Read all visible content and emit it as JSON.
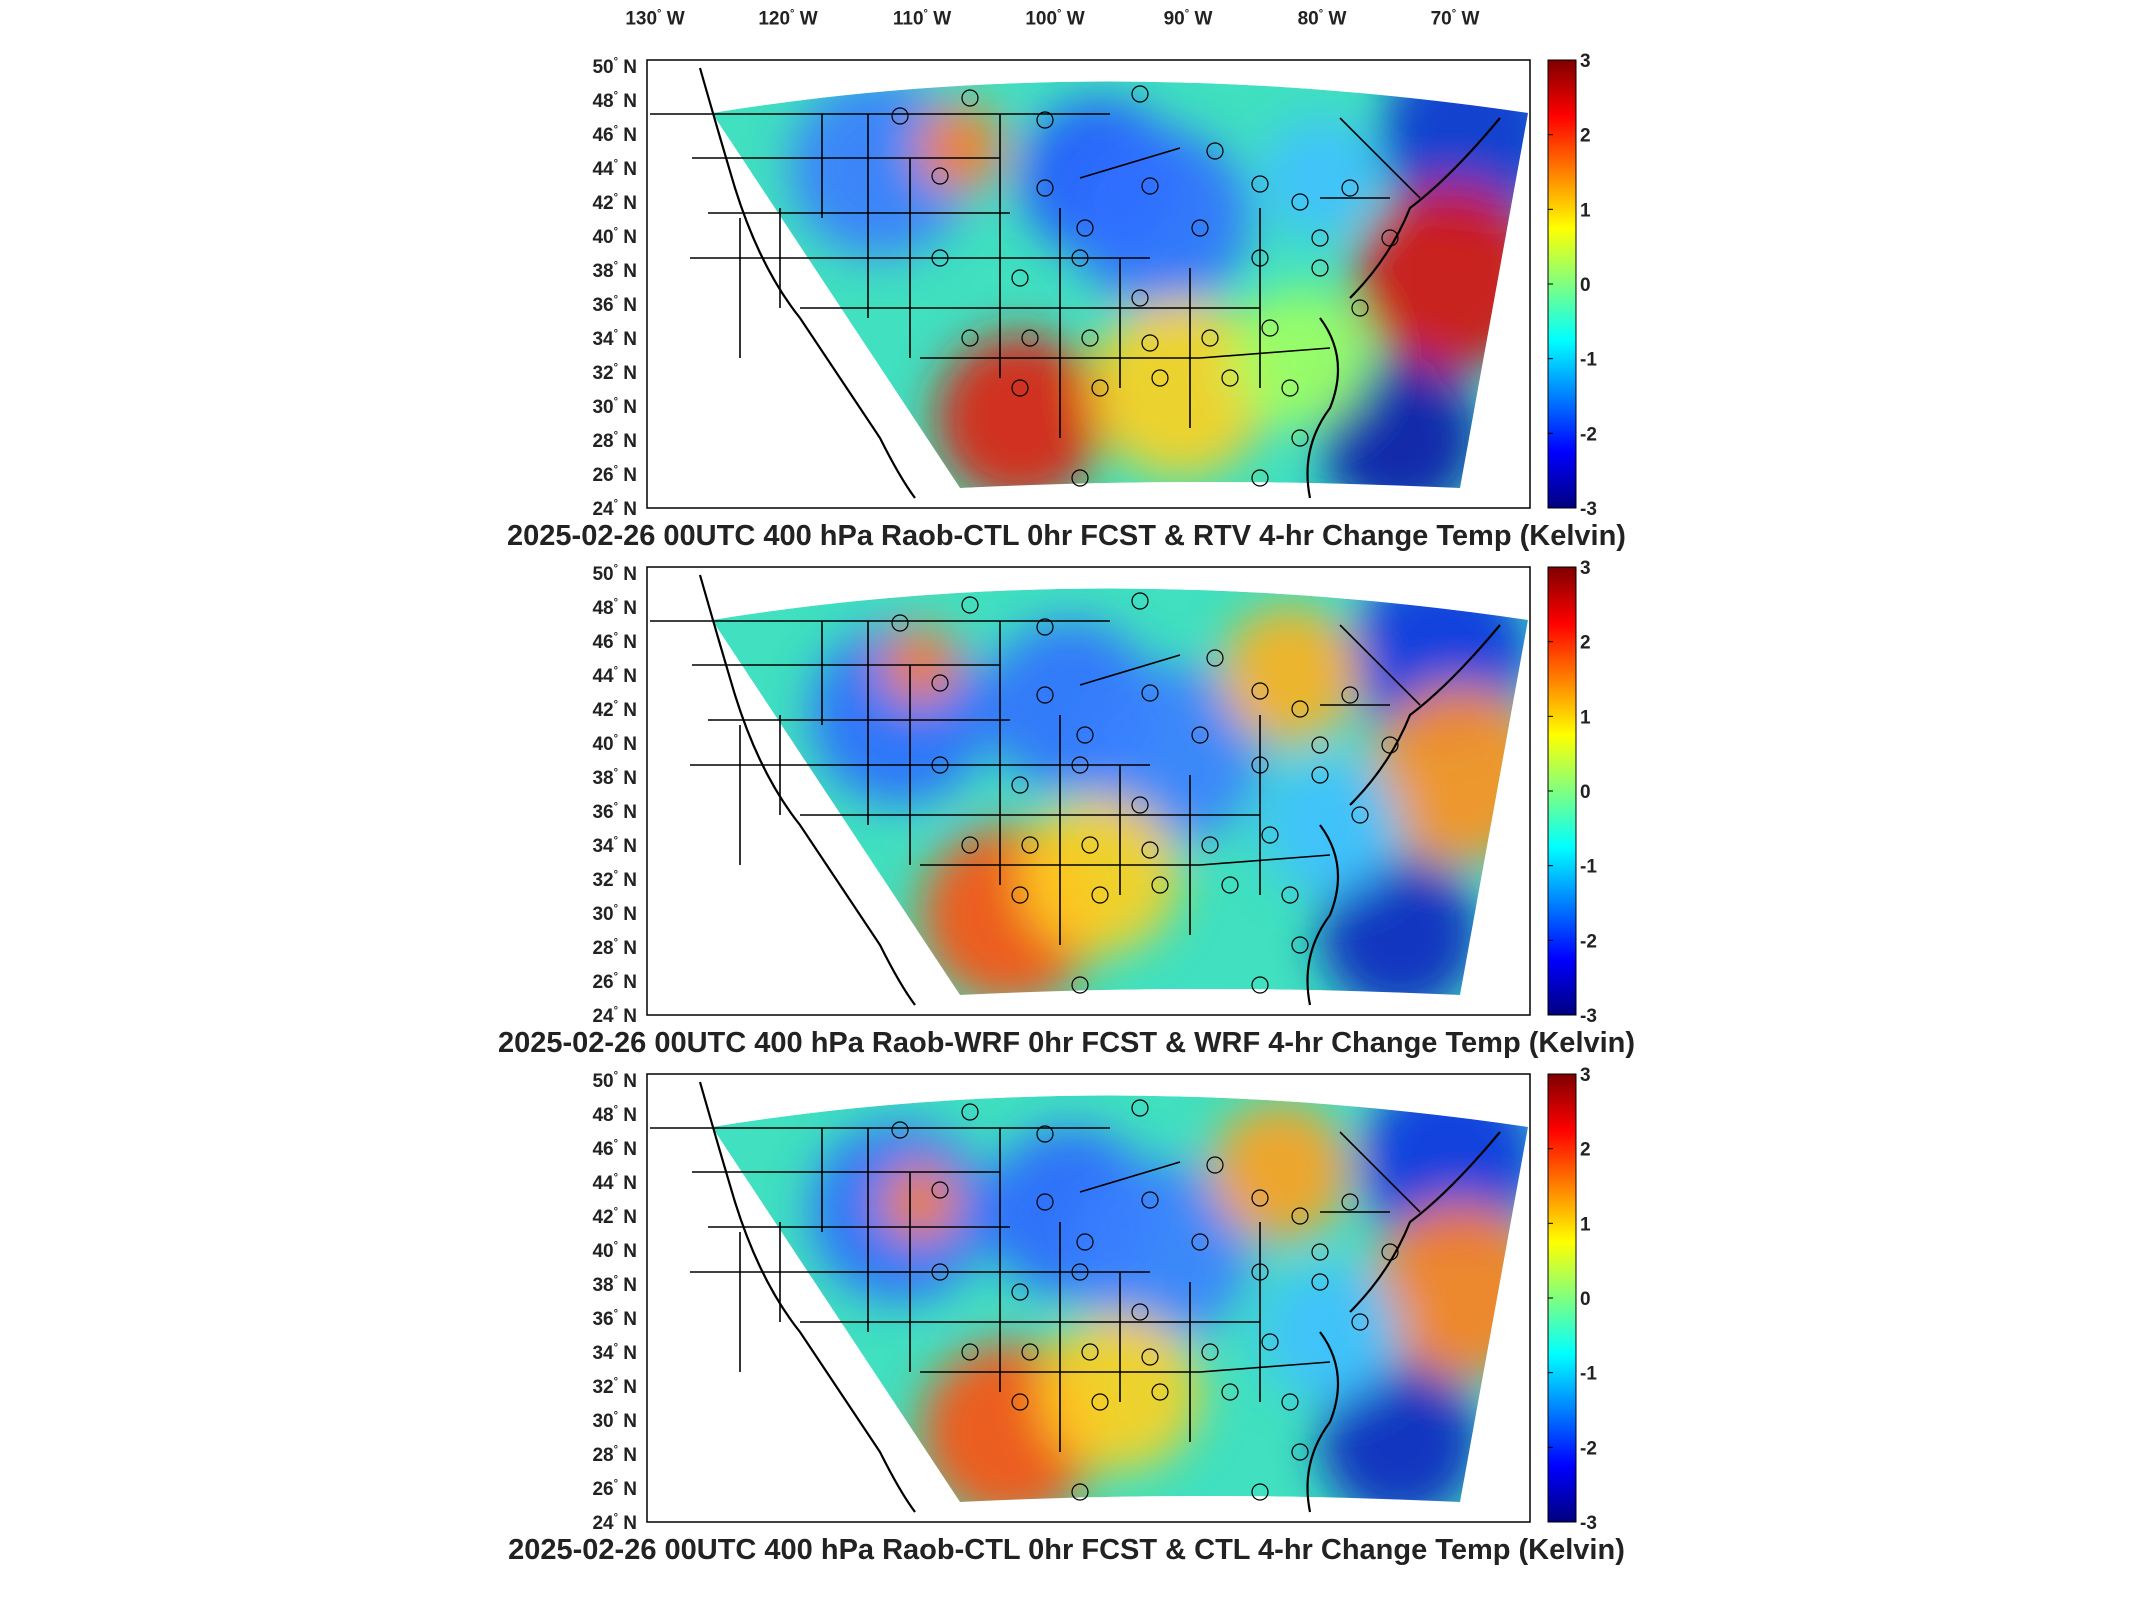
{
  "longitude_labels": [
    {
      "value": "130",
      "hemi": "W"
    },
    {
      "value": "120",
      "hemi": "W"
    },
    {
      "value": "110",
      "hemi": "W"
    },
    {
      "value": "100",
      "hemi": "W"
    },
    {
      "value": "90",
      "hemi": "W"
    },
    {
      "value": "80",
      "hemi": "W"
    },
    {
      "value": "70",
      "hemi": "W"
    }
  ],
  "latitude_labels": [
    "50",
    "48",
    "46",
    "44",
    "42",
    "40",
    "38",
    "36",
    "34",
    "32",
    "30",
    "28",
    "26",
    "24"
  ],
  "latitude_hemi": "N",
  "degree_symbol": "°",
  "colorbar": {
    "ticks": [
      "3",
      "2",
      "1",
      "0",
      "-1",
      "-2",
      "-3"
    ],
    "min": -3,
    "max": 3,
    "colormap": "jet",
    "colors": [
      "#7f0000",
      "#ff0000",
      "#ff8000",
      "#ffff00",
      "#80ff80",
      "#00ffff",
      "#0080ff",
      "#0000ff",
      "#00007f"
    ]
  },
  "panels": [
    {
      "title": "2025-02-26 00UTC 400 hPa Raob-CTL 0hr FCST & RTV 4-hr Change Temp (Kelvin)"
    },
    {
      "title": "2025-02-26 00UTC 400 hPa Raob-WRF 0hr FCST & WRF 4-hr Change Temp (Kelvin)"
    },
    {
      "title": "2025-02-26 00UTC 400 hPa Raob-CTL 0hr FCST & CTL 4-hr Change Temp (Kelvin)"
    }
  ]
}
